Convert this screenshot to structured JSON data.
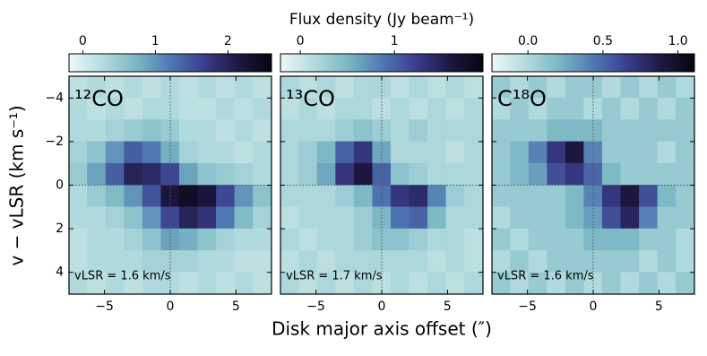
{
  "figure": {
    "title": "Flux density (Jy beam⁻¹)",
    "xlabel": "Disk major axis offset (″)",
    "ylabel": "v − vLSR (km s⁻¹)",
    "colormap": [
      "#eef8f8",
      "#b4dcdf",
      "#7bb8c4",
      "#4f78b4",
      "#3a3d8c",
      "#1e1842",
      "#05050f"
    ]
  },
  "chart_data": [
    {
      "type": "heatmap",
      "title": "¹²CO",
      "annotation": "vLSR = 1.6 km/s",
      "x": [
        -7,
        -5.6,
        -4.2,
        -2.8,
        -1.4,
        0,
        1.4,
        2.8,
        4.2,
        5.6,
        7
      ],
      "y": [
        -4.5,
        -3.5,
        -2.5,
        -1.5,
        -0.5,
        0.5,
        1.5,
        2.5,
        3.5,
        4.5
      ],
      "z": [
        [
          0.2,
          0.3,
          0.2,
          0.3,
          0.2,
          0.3,
          0.2,
          0.3,
          0.2,
          0.3,
          0.2
        ],
        [
          0.3,
          0.2,
          0.3,
          0.2,
          0.3,
          0.3,
          0.2,
          0.2,
          0.3,
          0.2,
          0.3
        ],
        [
          0.3,
          0.3,
          0.4,
          0.5,
          0.6,
          0.5,
          0.3,
          0.3,
          0.2,
          0.3,
          0.2
        ],
        [
          0.4,
          0.6,
          1.0,
          1.4,
          1.2,
          0.8,
          0.4,
          0.3,
          0.3,
          0.2,
          0.3
        ],
        [
          0.5,
          0.9,
          1.4,
          2.0,
          1.9,
          1.6,
          0.9,
          0.6,
          0.5,
          0.4,
          0.3
        ],
        [
          0.3,
          0.5,
          0.7,
          1.0,
          1.5,
          2.2,
          2.4,
          2.2,
          1.6,
          1.0,
          0.6
        ],
        [
          0.3,
          0.3,
          0.4,
          0.6,
          1.0,
          1.6,
          2.0,
          1.8,
          1.2,
          0.7,
          0.4
        ],
        [
          0.2,
          0.3,
          0.3,
          0.4,
          0.6,
          0.9,
          0.8,
          0.6,
          0.4,
          0.3,
          0.3
        ],
        [
          0.2,
          0.3,
          0.3,
          0.3,
          0.4,
          0.4,
          0.4,
          0.3,
          0.3,
          0.2,
          0.2
        ],
        [
          0.3,
          0.2,
          0.3,
          0.2,
          0.3,
          0.3,
          0.2,
          0.3,
          0.2,
          0.3,
          0.2
        ]
      ],
      "xlim": [
        -7.7,
        7.7
      ],
      "ylim": [
        5,
        -5
      ],
      "xticks": [
        {
          "value": -5,
          "label": "−5"
        },
        0,
        5
      ],
      "yticks": [
        {
          "value": -4,
          "label": "−4"
        },
        {
          "value": -2,
          "label": "−2"
        },
        0,
        2,
        4
      ],
      "reflines": {
        "x": 0,
        "y": 0
      },
      "clim": [
        -0.19,
        2.6
      ],
      "cticks": [
        0,
        1,
        2
      ]
    },
    {
      "type": "heatmap",
      "title": "¹³CO",
      "annotation": "vLSR = 1.7 km/s",
      "x": [
        -7,
        -5.6,
        -4.2,
        -2.8,
        -1.4,
        0,
        1.4,
        2.8,
        4.2,
        5.6,
        7
      ],
      "y": [
        -4.5,
        -3.5,
        -2.5,
        -1.5,
        -0.5,
        0.5,
        1.5,
        2.5,
        3.5,
        4.5
      ],
      "z": [
        [
          0.2,
          0.1,
          0.2,
          0.1,
          0.2,
          0.2,
          0.1,
          0.2,
          0.1,
          0.2,
          0.1
        ],
        [
          0.1,
          0.2,
          0.1,
          0.2,
          0.2,
          0.1,
          0.2,
          0.1,
          0.2,
          0.1,
          0.2
        ],
        [
          0.2,
          0.2,
          0.2,
          0.3,
          0.4,
          0.3,
          0.2,
          0.3,
          0.2,
          0.2,
          0.2
        ],
        [
          0.2,
          0.3,
          0.5,
          1.0,
          1.3,
          0.6,
          0.2,
          0.2,
          0.2,
          0.1,
          0.2
        ],
        [
          0.2,
          0.3,
          0.6,
          1.3,
          1.6,
          1.0,
          0.4,
          0.3,
          0.2,
          0.2,
          0.2
        ],
        [
          0.2,
          0.2,
          0.2,
          0.3,
          0.5,
          0.9,
          1.3,
          1.4,
          0.8,
          0.3,
          0.2
        ],
        [
          0.1,
          0.2,
          0.2,
          0.2,
          0.3,
          0.5,
          0.9,
          1.0,
          0.5,
          0.2,
          0.2
        ],
        [
          0.2,
          0.1,
          0.2,
          0.2,
          0.3,
          0.4,
          0.4,
          0.3,
          0.2,
          0.2,
          0.1
        ],
        [
          0.1,
          0.2,
          0.1,
          0.2,
          0.2,
          0.2,
          0.2,
          0.2,
          0.1,
          0.2,
          0.1
        ],
        [
          0.2,
          0.1,
          0.2,
          0.1,
          0.2,
          0.1,
          0.2,
          0.1,
          0.2,
          0.1,
          0.2
        ]
      ],
      "xlim": [
        -7.7,
        7.7
      ],
      "ylim": [
        5,
        -5
      ],
      "xticks": [
        {
          "value": -5,
          "label": "−5"
        },
        0,
        5
      ],
      "yticks": [
        -4,
        -2,
        0,
        2,
        4
      ],
      "reflines": {
        "x": 0,
        "y": 0
      },
      "clim": [
        -0.21,
        1.94
      ],
      "cticks": [
        0,
        1
      ]
    },
    {
      "type": "heatmap",
      "title": "C¹⁸O",
      "annotation": "vLSR = 1.6 km/s",
      "x": [
        -7,
        -5.6,
        -4.2,
        -2.8,
        -1.4,
        0,
        1.4,
        2.8,
        4.2,
        5.6,
        7
      ],
      "y": [
        -4.5,
        -3.5,
        -2.5,
        -1.5,
        -0.5,
        0.5,
        1.5,
        2.5,
        3.5,
        4.5
      ],
      "z": [
        [
          0.1,
          0.0,
          0.1,
          0.0,
          0.1,
          0.1,
          0.0,
          0.1,
          0.0,
          0.1,
          0.0
        ],
        [
          0.0,
          0.1,
          0.0,
          0.1,
          0.1,
          0.0,
          0.1,
          0.0,
          0.1,
          0.0,
          0.1
        ],
        [
          0.1,
          0.1,
          0.1,
          0.2,
          0.2,
          0.2,
          0.1,
          0.1,
          0.1,
          0.1,
          0.1
        ],
        [
          0.1,
          0.2,
          0.4,
          0.7,
          0.9,
          0.4,
          0.1,
          0.1,
          0.1,
          0.0,
          0.1
        ],
        [
          0.1,
          0.2,
          0.3,
          0.6,
          0.7,
          0.5,
          0.2,
          0.1,
          0.1,
          0.1,
          0.1
        ],
        [
          0.1,
          0.1,
          0.1,
          0.1,
          0.2,
          0.4,
          0.7,
          0.9,
          0.6,
          0.2,
          0.1
        ],
        [
          0.0,
          0.1,
          0.1,
          0.1,
          0.2,
          0.3,
          0.6,
          0.8,
          0.4,
          0.1,
          0.1
        ],
        [
          0.1,
          0.0,
          0.1,
          0.1,
          0.1,
          0.2,
          0.2,
          0.2,
          0.1,
          0.1,
          0.0
        ],
        [
          0.0,
          0.1,
          0.0,
          0.1,
          0.1,
          0.1,
          0.1,
          0.1,
          0.0,
          0.1,
          0.0
        ],
        [
          0.1,
          0.0,
          0.1,
          0.0,
          0.1,
          0.0,
          0.1,
          0.0,
          0.1,
          0.0,
          0.1
        ]
      ],
      "xlim": [
        -7.7,
        7.7
      ],
      "ylim": [
        5,
        -5
      ],
      "xticks": [
        {
          "value": -5,
          "label": "−5"
        },
        0,
        5
      ],
      "yticks": [
        -4,
        -2,
        0,
        2,
        4
      ],
      "reflines": {
        "x": 0,
        "y": 0
      },
      "clim": [
        -0.24,
        1.11
      ],
      "cticks": [
        {
          "value": 0,
          "label": "0.0"
        },
        {
          "value": 0.5,
          "label": "0.5"
        },
        {
          "value": 1,
          "label": "1.0"
        }
      ]
    }
  ]
}
